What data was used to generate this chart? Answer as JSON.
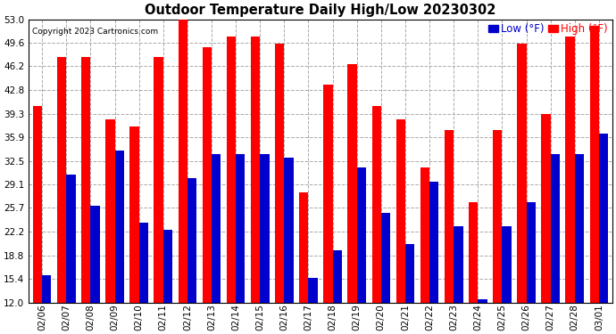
{
  "title": "Outdoor Temperature Daily High/Low 20230302",
  "copyright": "Copyright 2023 Cartronics.com",
  "legend_low": "Low",
  "legend_high": "High",
  "legend_unit": "(°F)",
  "dates": [
    "02/06",
    "02/07",
    "02/08",
    "02/09",
    "02/10",
    "02/11",
    "02/12",
    "02/13",
    "02/14",
    "02/15",
    "02/16",
    "02/17",
    "02/18",
    "02/19",
    "02/20",
    "02/21",
    "02/22",
    "02/23",
    "02/24",
    "02/25",
    "02/26",
    "02/27",
    "02/28",
    "03/01"
  ],
  "highs": [
    40.5,
    47.5,
    47.5,
    38.5,
    37.5,
    47.5,
    53.5,
    49.0,
    50.5,
    50.5,
    49.5,
    28.0,
    43.5,
    46.5,
    40.5,
    38.5,
    31.5,
    37.0,
    26.5,
    37.0,
    49.5,
    39.3,
    50.5,
    52.0
  ],
  "lows": [
    16.0,
    30.5,
    26.0,
    34.0,
    23.5,
    22.5,
    30.0,
    33.5,
    33.5,
    33.5,
    33.0,
    15.5,
    19.5,
    31.5,
    25.0,
    20.5,
    29.5,
    23.0,
    12.5,
    23.0,
    26.5,
    33.5,
    33.5,
    36.5
  ],
  "ylim": [
    12.0,
    53.0
  ],
  "yticks": [
    12.0,
    15.4,
    18.8,
    22.2,
    25.7,
    29.1,
    32.5,
    35.9,
    39.3,
    42.8,
    46.2,
    49.6,
    53.0
  ],
  "bar_width": 0.38,
  "high_color": "#ff0000",
  "low_color": "#0000cc",
  "bg_color": "#ffffff",
  "grid_color": "#aaaaaa",
  "title_fontsize": 10.5,
  "copyright_fontsize": 6.5,
  "tick_fontsize": 7.5,
  "legend_fontsize": 8.5
}
